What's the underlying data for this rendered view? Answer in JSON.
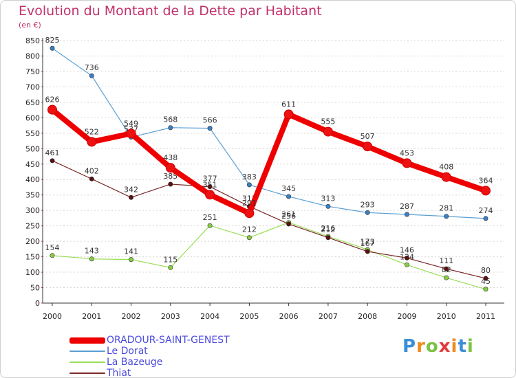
{
  "title": "Evolution du Montant de la Dette par Habitant",
  "subtitle": "(en €)",
  "logo_text": "Proxiti",
  "colors": {
    "title": "#c0306a",
    "legend_text": "#4a4adf",
    "grid": "#d5d5d5",
    "axis": "#333333"
  },
  "chart_data": {
    "type": "line",
    "x": [
      "2000",
      "2001",
      "2002",
      "2003",
      "2004",
      "2005",
      "2006",
      "2007",
      "2008",
      "2009",
      "2010",
      "2011"
    ],
    "ylim": [
      0,
      850
    ],
    "yticks": [
      0,
      50,
      100,
      150,
      200,
      250,
      300,
      350,
      400,
      450,
      500,
      550,
      600,
      650,
      700,
      750,
      800,
      850
    ],
    "grid": "horizontal dashed",
    "legend_position": "bottom-left",
    "series": [
      {
        "name": "ORADOUR-SAINT-GENEST",
        "color": "#ee0000",
        "marker_color": "#ee1111",
        "thick": true,
        "values": [
          626,
          522,
          549,
          438,
          351,
          291,
          611,
          555,
          507,
          453,
          408,
          364
        ],
        "labels": [
          "626",
          "522",
          "549",
          "438",
          "351",
          "291",
          "611",
          "555",
          "507",
          "453",
          "408",
          "364"
        ]
      },
      {
        "name": "Le Dorat",
        "color": "#5a9fd4",
        "marker_color": "#3b7fc4",
        "thick": false,
        "values": [
          825,
          736,
          537,
          568,
          566,
          383,
          345,
          313,
          293,
          287,
          281,
          274
        ],
        "labels": [
          "825",
          "736",
          "537",
          "568",
          "566",
          "383",
          "345",
          "313",
          "293",
          "287",
          "281",
          "274"
        ]
      },
      {
        "name": "La Bazeuge",
        "color": "#99dd55",
        "marker_color": "#88cc44",
        "thick": false,
        "values": [
          154,
          143,
          141,
          115,
          251,
          212,
          261,
          216,
          173,
          124,
          82,
          45
        ],
        "labels": [
          "154",
          "143",
          "141",
          "115",
          "251",
          "212",
          "261",
          "216",
          "173",
          "124",
          "82",
          "45"
        ]
      },
      {
        "name": "Thiat",
        "color": "#7a2a2a",
        "marker_color": "#5a1010",
        "thick": false,
        "values": [
          461,
          402,
          342,
          385,
          377,
          313,
          256,
          212,
          167,
          146,
          111,
          80
        ],
        "labels": [
          "461",
          "402",
          "342",
          "385",
          "377",
          "313",
          "256",
          "212",
          "167",
          "146",
          "111",
          "80"
        ]
      }
    ]
  }
}
